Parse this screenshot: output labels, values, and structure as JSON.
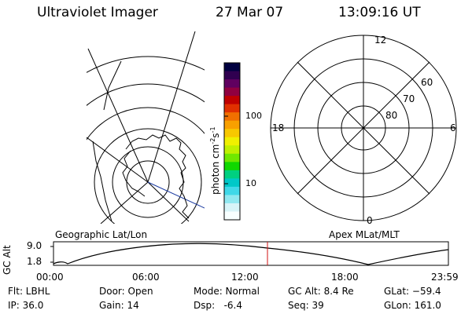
{
  "header": {
    "instrument": "Ultraviolet Imager",
    "date": "27 Mar 07",
    "time": "13:09:16 UT"
  },
  "colorbar": {
    "unit_label": "photon cm",
    "unit_sup1": "-2",
    "unit_s": "s",
    "unit_sup2": "-1",
    "ticks": [
      "100",
      "10"
    ],
    "colors": [
      "#000040",
      "#300050",
      "#600060",
      "#900040",
      "#c00000",
      "#e03000",
      "#f07000",
      "#f8a000",
      "#f8c800",
      "#f0f000",
      "#c0f000",
      "#70e800",
      "#10d800",
      "#00d080",
      "#00c8c8",
      "#40d8e8",
      "#90e8f0",
      "#d8f4f8",
      "#f8ffff"
    ]
  },
  "left_map": {
    "label": "Geographic Lat/Lon"
  },
  "right_map": {
    "label": "Apex MLat/MLT",
    "mlt_labels": {
      "top": "12",
      "left": "18",
      "right": "6",
      "bottom": "0"
    },
    "lat_labels": [
      "60",
      "70",
      "80"
    ]
  },
  "timeline": {
    "ylabel": "GC Alt",
    "y_ticks": [
      "9.0",
      "1.8"
    ],
    "x_ticks": [
      "00:00",
      "06:00",
      "12:00",
      "18:00",
      "23:59"
    ],
    "marker_time": "13:09:16"
  },
  "status": {
    "filter": "Flt: LBHL",
    "ip": "IP: 36.0",
    "door": "Door: Open",
    "gain": "Gain: 14",
    "mode": "Mode: Normal",
    "dsp": "Dsp:   -6.4",
    "gc_alt": "GC Alt: 8.4 Re",
    "seq": "Seq: 39",
    "glat": "GLat: −59.4",
    "glon": "GLon: 161.0"
  }
}
